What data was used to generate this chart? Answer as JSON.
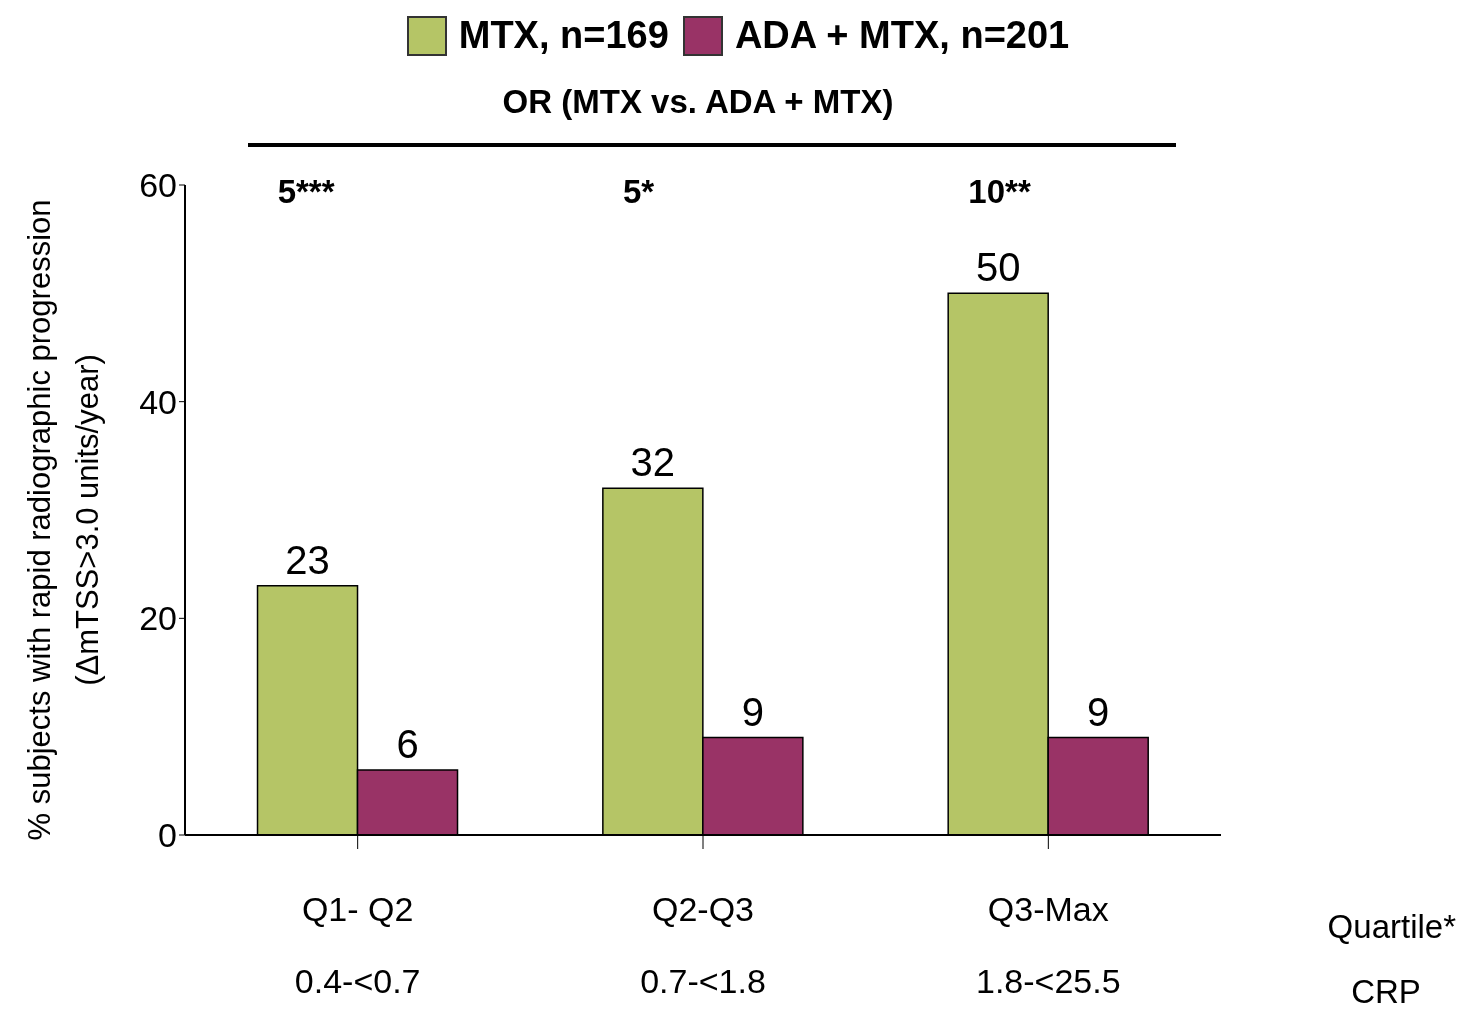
{
  "chart_data": {
    "type": "bar",
    "categories": [
      "Q1- Q2\n0.4-<0.7",
      "Q2-Q3\n0.7-<1.8",
      "Q3-Max\n1.8-<25.5"
    ],
    "series": [
      {
        "name": "MTX, n=169",
        "color": "#b5c566",
        "values": [
          23,
          32,
          50
        ]
      },
      {
        "name": "ADA + MTX, n=201",
        "color": "#993366",
        "values": [
          6,
          9,
          9
        ]
      }
    ],
    "ylabel": "% subjects with rapid radiographic progression\n(ΔmTSS>3.0 units/year)",
    "ylim": [
      0,
      60
    ],
    "yticks": [
      0,
      20,
      40,
      60
    ],
    "data_labels": true,
    "legend": "top",
    "grid": false,
    "annotations": [
      "OR (MTX vs. ADA + MTX)",
      "Quartile*",
      "CRP",
      "5***",
      "5*",
      "10**"
    ]
  }
}
